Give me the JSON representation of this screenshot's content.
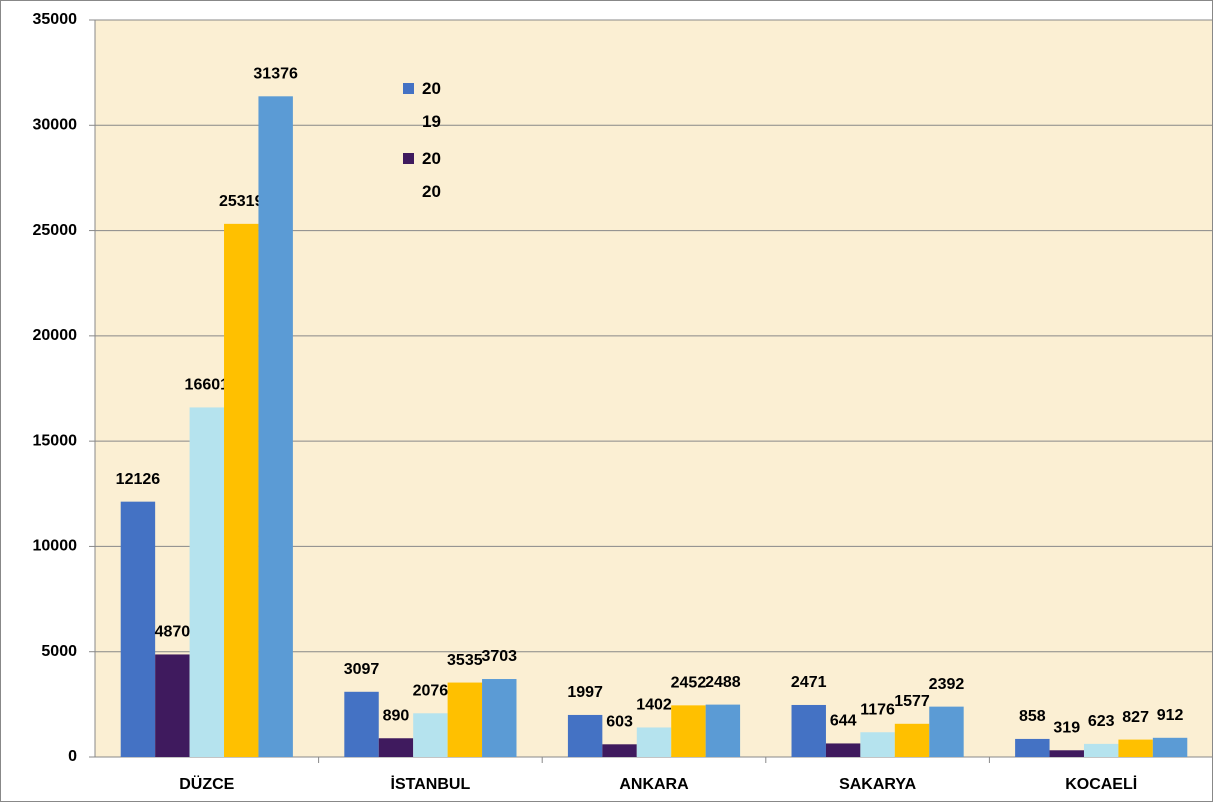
{
  "chart_data": {
    "type": "bar",
    "categories": [
      "DÜZCE",
      "İSTANBUL",
      "ANKARA",
      "SAKARYA",
      "KOCAELİ"
    ],
    "series": [
      {
        "name": "2019",
        "color": "#4472c4",
        "values": [
          12126,
          3097,
          1997,
          2471,
          858
        ]
      },
      {
        "name": "2020",
        "color": "#3f1a5e",
        "values": [
          4870,
          890,
          603,
          644,
          319
        ]
      },
      {
        "color": "#b5e3ee",
        "values": [
          16601,
          2076,
          1402,
          1176,
          623
        ]
      },
      {
        "color": "#ffc000",
        "values": [
          25319,
          3535,
          2452,
          1577,
          827
        ]
      },
      {
        "color": "#5b9bd5",
        "values": [
          31376,
          3703,
          2488,
          2392,
          912
        ]
      }
    ],
    "ylim": [
      0,
      35000
    ],
    "yticks": [
      0,
      5000,
      10000,
      15000,
      20000,
      25000,
      30000,
      35000
    ],
    "grid": true
  }
}
